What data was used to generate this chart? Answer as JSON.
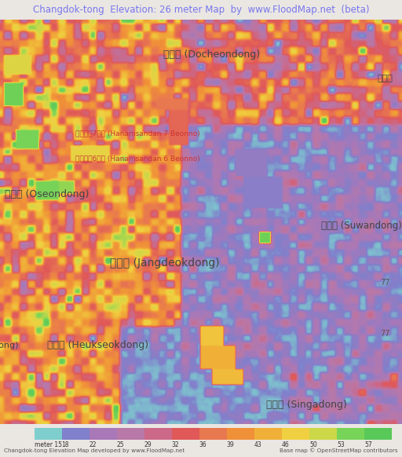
{
  "title": "Changdok-tong  Elevation: 26 meter Map  by  www.FloodMap.net  (beta)",
  "title_color": "#7777ee",
  "background_color": "#eae6e2",
  "colorbar_labels": [
    "meter 15",
    "18",
    "22",
    "25",
    "29",
    "32",
    "36",
    "39",
    "43",
    "46",
    "50",
    "53",
    "57"
  ],
  "colorbar_values": [
    15,
    18,
    22,
    25,
    29,
    32,
    36,
    39,
    43,
    46,
    50,
    53,
    57
  ],
  "colorbar_colors": [
    "#7ecece",
    "#8080cc",
    "#a878b8",
    "#b878a8",
    "#cc6888",
    "#e05858",
    "#e87850",
    "#f09038",
    "#f0b038",
    "#f0d040",
    "#ccd848",
    "#78d458",
    "#58c858"
  ],
  "footer_left": "Changdok-tong Elevation Map developed by www.FloodMap.net",
  "footer_right": "Base map © OpenStreetMap contributors",
  "figsize": [
    5.12,
    5.82
  ],
  "dpi": 100,
  "vmin": 15,
  "vmax": 57,
  "seed": 123
}
